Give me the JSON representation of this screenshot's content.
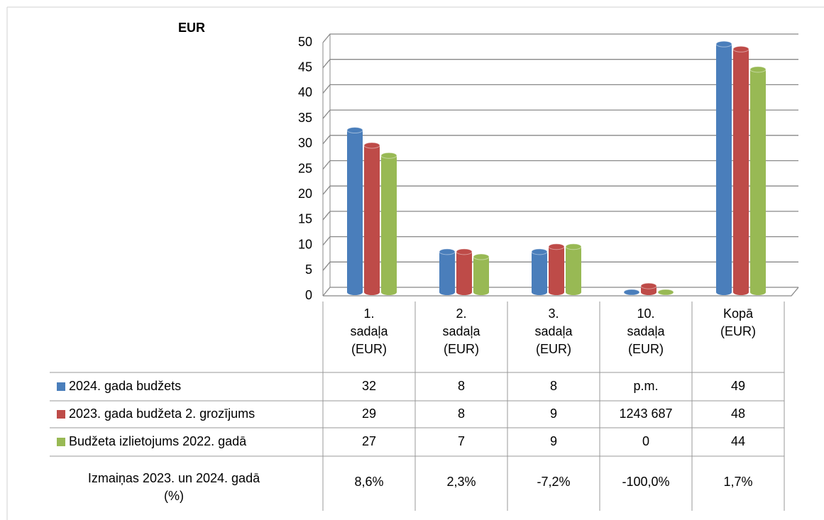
{
  "chart_data": {
    "type": "bar3d",
    "title": "EUR",
    "categories": [
      "1. sadaļa (EUR)",
      "2. sadaļa (EUR)",
      "3. sadaļa (EUR)",
      "10. sadaļa (EUR)",
      "Kopā (EUR)"
    ],
    "series": [
      {
        "name": "2024. gada budžets",
        "color": "#4a7ebb",
        "values": [
          32,
          8,
          8,
          0,
          49
        ],
        "value_labels": [
          "32",
          "8",
          "8",
          "p.m.",
          "49"
        ]
      },
      {
        "name": "2023. gada budžeta  2. grozījums",
        "color": "#be4b48",
        "values": [
          29,
          8,
          9,
          1.243687,
          48
        ],
        "value_labels": [
          "29",
          "8",
          "9",
          "1243 687",
          "48"
        ]
      },
      {
        "name": "Budžeta izlietojums  2022. gadā",
        "color": "#98b954",
        "values": [
          27,
          7,
          9,
          0,
          44
        ],
        "value_labels": [
          "27",
          "7",
          "9",
          "0",
          "44"
        ]
      }
    ],
    "change_row": {
      "name": "Izmaiņas 2023. un 2024. gadā (%)",
      "values": [
        8.6,
        2.3,
        -7.2,
        -100.0,
        1.7
      ],
      "value_labels": [
        "8,6%",
        "2,3%",
        "-7,2%",
        "-100,0%",
        "1,7%"
      ]
    },
    "ylim": [
      0,
      50
    ],
    "yticks": [
      0,
      5,
      10,
      15,
      20,
      25,
      30,
      35,
      40,
      45,
      50
    ],
    "grid": true
  }
}
